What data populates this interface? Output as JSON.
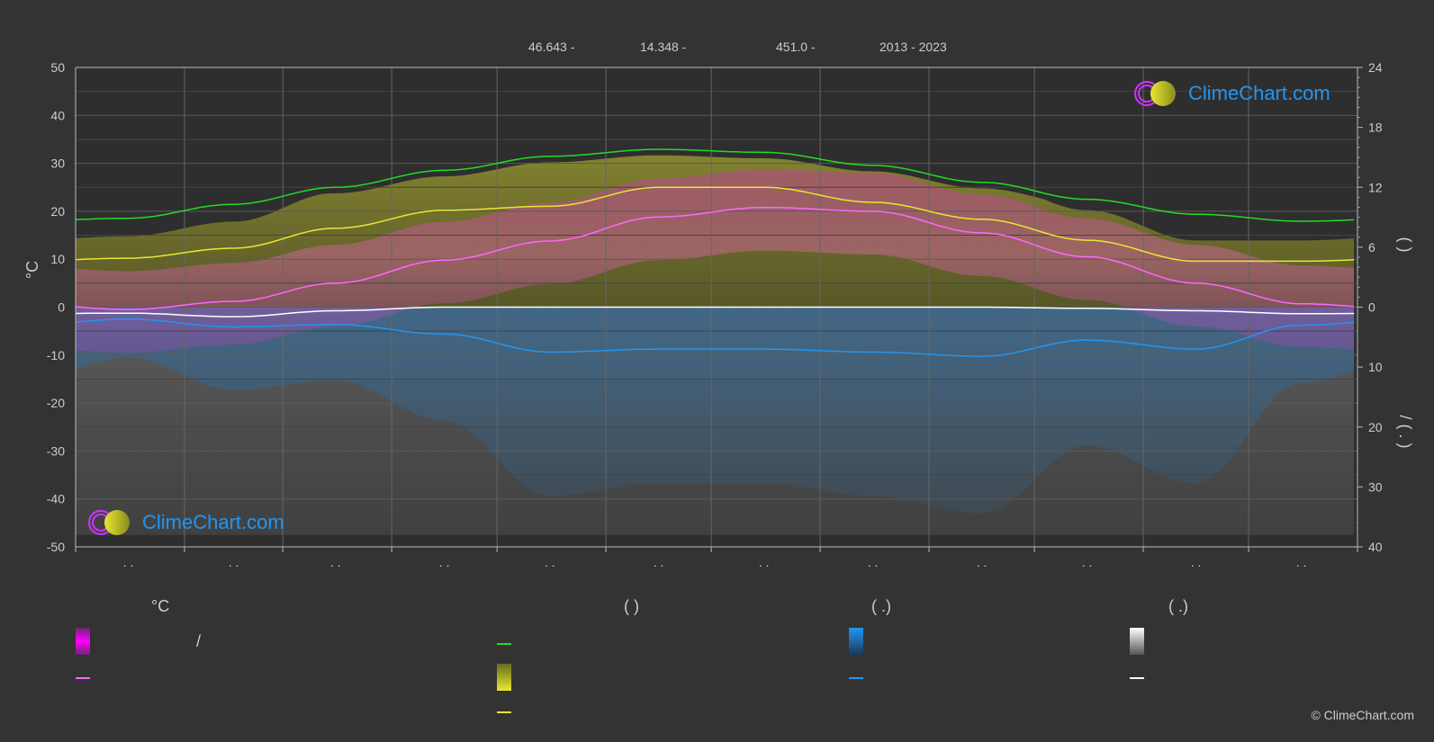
{
  "header": {
    "lat": "46.643 -",
    "lon": "14.348 -",
    "elevation": "451.0 -",
    "years": "2013 - 2023"
  },
  "logo": {
    "text": "ClimeChart.com"
  },
  "copyright": "© ClimeChart.com",
  "legend": {
    "col1_title": "°C",
    "col2_title": "(          )",
    "col3_title": "(   .)",
    "col4_title": "(   .)",
    "slash_label": "/"
  },
  "right_axis_labels": {
    "upper": "(          )",
    "lower": "/     (   .   )"
  },
  "colors": {
    "background": "#333333",
    "grid": "#5a5a5a",
    "daylight": "#22dd22",
    "sunshine": "#e8e830",
    "temp_mean": "#ff66ff",
    "precip": "#2196f3",
    "snow": "#ffffff",
    "logo": "#2196f3"
  },
  "chart_data": {
    "type": "line",
    "x": [
      1,
      2,
      3,
      4,
      5,
      6,
      7,
      8,
      9,
      10,
      11,
      12
    ],
    "x_tick_labels": [
      ". .",
      ". .",
      ". .",
      ". .",
      ". .",
      ". .",
      ". .",
      ". .",
      ". .",
      ". .",
      ". .",
      ". ."
    ],
    "ylabel_left": "°C",
    "ylim_left": [
      -50,
      50
    ],
    "y_ticks_left": [
      50,
      40,
      30,
      20,
      10,
      0,
      -10,
      -20,
      -30,
      -40,
      -50
    ],
    "ylim_right_hours": [
      0,
      24
    ],
    "y_ticks_right_hours": [
      24,
      18,
      12,
      6,
      0
    ],
    "ylim_right_mm": [
      0,
      40
    ],
    "y_ticks_right_mm": [
      10,
      20,
      30,
      40
    ],
    "grid": true,
    "series": [
      {
        "key": "daylight_hours",
        "axis": "hours",
        "values": [
          8.9,
          10.3,
          12.0,
          13.7,
          15.1,
          15.8,
          15.5,
          14.2,
          12.5,
          10.8,
          9.3,
          8.6
        ]
      },
      {
        "key": "sunshine_hours",
        "axis": "hours",
        "values": [
          4.9,
          5.9,
          7.9,
          9.7,
          10.1,
          12.0,
          12.0,
          10.5,
          8.8,
          6.7,
          4.6,
          4.6
        ]
      },
      {
        "key": "temperature_mean",
        "axis": "temp",
        "values": [
          -0.5,
          1.2,
          5.0,
          9.8,
          13.8,
          18.8,
          20.8,
          20.0,
          15.5,
          10.5,
          5.0,
          0.7
        ]
      },
      {
        "key": "precipitation_mm",
        "axis": "mm",
        "values": [
          2.0,
          3.3,
          2.9,
          4.5,
          7.5,
          7.0,
          7.0,
          7.5,
          8.2,
          5.5,
          7.0,
          3.0
        ]
      },
      {
        "key": "snow_mm",
        "axis": "mm",
        "values": [
          1.0,
          1.6,
          0.6,
          0.0,
          0.0,
          0.0,
          0.0,
          0.0,
          0.0,
          0.2,
          0.6,
          1.1
        ]
      }
    ]
  }
}
